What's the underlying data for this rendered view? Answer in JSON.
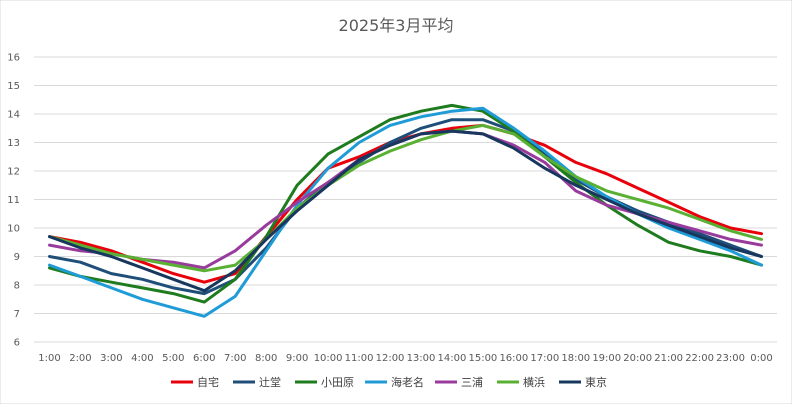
{
  "chart_data": {
    "type": "line",
    "title": "2025年3月平均",
    "xlabel": "",
    "ylabel": "",
    "x": [
      "1:00",
      "2:00",
      "3:00",
      "4:00",
      "5:00",
      "6:00",
      "7:00",
      "8:00",
      "9:00",
      "10:00",
      "11:00",
      "12:00",
      "13:00",
      "14:00",
      "15:00",
      "16:00",
      "17:00",
      "18:00",
      "19:00",
      "20:00",
      "21:00",
      "22:00",
      "23:00",
      "0:00"
    ],
    "ylim": [
      6,
      16
    ],
    "yticks": [
      6,
      7,
      8,
      9,
      10,
      11,
      12,
      13,
      14,
      15,
      16
    ],
    "grid": true,
    "legend_position": "bottom",
    "series": [
      {
        "name": "自宅",
        "color": "#e8000b",
        "values": [
          9.7,
          9.5,
          9.2,
          8.8,
          8.4,
          8.1,
          8.4,
          9.7,
          11.0,
          12.1,
          12.5,
          13.0,
          13.3,
          13.5,
          13.6,
          13.3,
          12.9,
          12.3,
          11.9,
          11.4,
          10.9,
          10.4,
          10.0,
          9.8
        ]
      },
      {
        "name": "辻堂",
        "color": "#1f4e79",
        "values": [
          9.0,
          8.8,
          8.4,
          8.2,
          7.9,
          7.7,
          8.2,
          9.3,
          10.7,
          11.6,
          12.3,
          13.0,
          13.5,
          13.8,
          13.8,
          13.4,
          12.6,
          11.7,
          11.1,
          10.6,
          10.2,
          9.8,
          9.4,
          9.0
        ]
      },
      {
        "name": "小田原",
        "color": "#1e7b1e",
        "values": [
          8.6,
          8.3,
          8.1,
          7.9,
          7.7,
          7.4,
          8.2,
          9.7,
          11.5,
          12.6,
          13.2,
          13.8,
          14.1,
          14.3,
          14.1,
          13.4,
          12.5,
          11.6,
          10.8,
          10.1,
          9.5,
          9.2,
          9.0,
          8.7
        ]
      },
      {
        "name": "海老名",
        "color": "#1f9bd7",
        "values": [
          8.7,
          8.3,
          7.9,
          7.5,
          7.2,
          6.9,
          7.6,
          9.2,
          10.8,
          12.1,
          13.0,
          13.6,
          13.9,
          14.1,
          14.2,
          13.5,
          12.7,
          11.8,
          11.1,
          10.5,
          10.0,
          9.6,
          9.2,
          8.7
        ]
      },
      {
        "name": "三浦",
        "color": "#983b9c",
        "values": [
          9.4,
          9.2,
          9.1,
          8.9,
          8.8,
          8.6,
          9.2,
          10.1,
          10.9,
          11.6,
          12.4,
          12.9,
          13.3,
          13.4,
          13.3,
          12.9,
          12.3,
          11.3,
          10.8,
          10.5,
          10.2,
          9.9,
          9.6,
          9.4
        ]
      },
      {
        "name": "横浜",
        "color": "#5ab032",
        "values": [
          9.7,
          9.4,
          9.1,
          8.9,
          8.7,
          8.5,
          8.7,
          9.6,
          10.7,
          11.5,
          12.2,
          12.7,
          13.1,
          13.4,
          13.6,
          13.3,
          12.5,
          11.8,
          11.3,
          11.0,
          10.7,
          10.3,
          9.9,
          9.6
        ]
      },
      {
        "name": "東京",
        "color": "#17375e",
        "values": [
          9.7,
          9.3,
          9.0,
          8.6,
          8.2,
          7.8,
          8.5,
          9.6,
          10.6,
          11.5,
          12.4,
          12.9,
          13.3,
          13.4,
          13.3,
          12.8,
          12.1,
          11.5,
          11.0,
          10.5,
          10.1,
          9.7,
          9.3,
          9.0
        ]
      }
    ]
  }
}
